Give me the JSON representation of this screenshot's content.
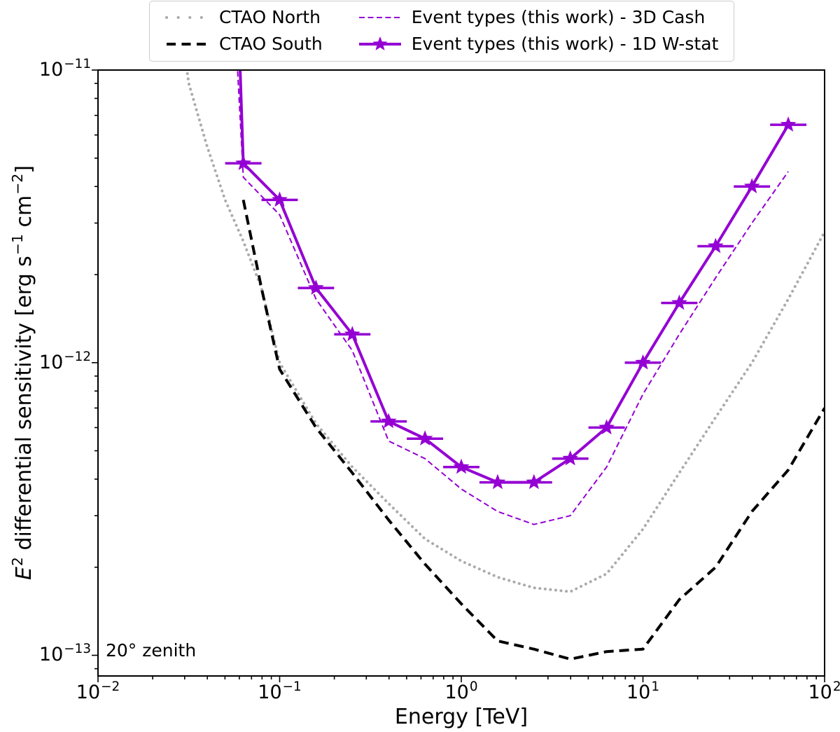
{
  "legend": {
    "items": [
      {
        "label": "CTAO North",
        "color": "#ababab",
        "style": "dotted",
        "lw": 4,
        "dash": "0.1 7.5",
        "dash_sample": "0.1 16.5",
        "marker": null
      },
      {
        "label": "CTAO South",
        "color": "#000000",
        "style": "dashed",
        "lw": 4,
        "dash": "14 8",
        "dash_sample": "13 8.5",
        "marker": null
      },
      {
        "label": "Event types (this work) - 3D Cash",
        "color": "#9400d3",
        "style": "dashed",
        "lw": 2,
        "dash": "8 4.5",
        "dash_sample": "8 4.5",
        "marker": null
      },
      {
        "label": "Event types (this work) - 1D W-stat",
        "color": "#9400d3",
        "style": "solid",
        "lw": 4,
        "dash": "",
        "dash_sample": "",
        "marker": "star"
      }
    ]
  },
  "axes": {
    "xlabel": "Energy [TeV]",
    "ylabel_e": "E",
    "ylabel_e_exp": "2",
    "ylabel_main": " differential sensitivity [erg s",
    "ylabel_sup1": "−1",
    "ylabel_mid": " cm",
    "ylabel_sup2": "−2",
    "ylabel_end": "]",
    "annotation": "20° zenith",
    "xticks": [
      {
        "base": "10",
        "exp": "−2"
      },
      {
        "base": "10",
        "exp": "−1"
      },
      {
        "base": "10",
        "exp": "0"
      },
      {
        "base": "10",
        "exp": "1"
      },
      {
        "base": "10",
        "exp": "2"
      }
    ],
    "yticks": [
      {
        "base": "10",
        "exp": "−11"
      },
      {
        "base": "10",
        "exp": "−12"
      },
      {
        "base": "10",
        "exp": "−13"
      }
    ]
  },
  "chart_data": {
    "type": "line",
    "title": "",
    "xlabel": "Energy [TeV]",
    "ylabel": "E² differential sensitivity [erg s⁻¹ cm⁻²]",
    "xscale": "log",
    "yscale": "log",
    "xlim": [
      0.01,
      100
    ],
    "ylim": [
      8.5e-14,
      1e-11
    ],
    "grid": false,
    "annotation": "20° zenith",
    "legend_position": "upper center, outside axes, two columns",
    "xtick_labels": [
      "10⁻²",
      "10⁻¹",
      "10⁰",
      "10¹",
      "10²"
    ],
    "ytick_labels": [
      "10⁻¹¹",
      "10⁻¹²",
      "10⁻¹³"
    ],
    "series": [
      {
        "name": "CTAO North",
        "color": "#ababab",
        "linestyle": "dotted",
        "lw": 4,
        "marker": null,
        "x": [
          0.029,
          0.0316,
          0.0398,
          0.0501,
          0.0631,
          0.0794,
          0.1,
          0.1585,
          0.2512,
          0.3981,
          0.631,
          1.0,
          1.585,
          2.512,
          3.981,
          6.31,
          10,
          15.85,
          25.12,
          39.81,
          63.1,
          100
        ],
        "y": [
          1.3e-11,
          9e-12,
          5.5e-12,
          3.6e-12,
          2.6e-12,
          1.8e-12,
          1e-12,
          6.2e-13,
          4.4e-13,
          3.3e-13,
          2.5e-13,
          2.1e-13,
          1.85e-13,
          1.7e-13,
          1.65e-13,
          1.9e-13,
          2.7e-13,
          4.2e-13,
          6.5e-13,
          1e-12,
          1.65e-12,
          2.8e-12
        ]
      },
      {
        "name": "CTAO South",
        "color": "#000000",
        "linestyle": "dashed",
        "lw": 4,
        "marker": null,
        "x": [
          0.0631,
          0.0794,
          0.1,
          0.1585,
          0.2512,
          0.3981,
          0.631,
          1.0,
          1.585,
          2.512,
          3.981,
          6.31,
          10,
          15.85,
          25.12,
          39.81,
          63.1,
          100
        ],
        "y": [
          3.6e-12,
          1.8e-12,
          9.5e-13,
          6e-13,
          4.2e-13,
          2.9e-13,
          2.05e-13,
          1.5e-13,
          1.12e-13,
          1.05e-13,
          9.7e-14,
          1.03e-13,
          1.05e-13,
          1.55e-13,
          2e-13,
          3.1e-13,
          4.3e-13,
          7e-13
        ]
      },
      {
        "name": "Event types (this work) - 3D Cash",
        "color": "#9400d3",
        "linestyle": "dashed",
        "lw": 2,
        "marker": null,
        "x": [
          0.057,
          0.0631,
          0.1,
          0.1585,
          0.2512,
          0.3981,
          0.631,
          1.0,
          1.585,
          2.512,
          3.981,
          6.31,
          10,
          15.85,
          25.12,
          39.81,
          63.1
        ],
        "y": [
          1.4e-11,
          4.3e-12,
          3.2e-12,
          1.65e-12,
          1.1e-12,
          5.4e-13,
          4.7e-13,
          3.7e-13,
          3.1e-13,
          2.8e-13,
          3e-13,
          4.4e-13,
          7.8e-13,
          1.25e-12,
          1.95e-12,
          3e-12,
          4.5e-12
        ]
      },
      {
        "name": "Event types (this work) - 1D W-stat",
        "color": "#9400d3",
        "linestyle": "solid",
        "lw": 4,
        "marker": "star",
        "marker_from": 1,
        "xerr_factor": 1.2589,
        "x": [
          0.0595,
          0.0631,
          0.1,
          0.1585,
          0.2512,
          0.3981,
          0.631,
          1.0,
          1.585,
          2.512,
          3.981,
          6.31,
          10,
          15.85,
          25.12,
          39.81,
          63.1
        ],
        "y": [
          1.4e-11,
          4.8e-12,
          3.6e-12,
          1.8e-12,
          1.25e-12,
          6.3e-13,
          5.5e-13,
          4.4e-13,
          3.9e-13,
          3.9e-13,
          4.7e-13,
          6e-13,
          1e-12,
          1.6e-12,
          2.5e-12,
          4e-12,
          6.5e-12
        ]
      }
    ]
  }
}
